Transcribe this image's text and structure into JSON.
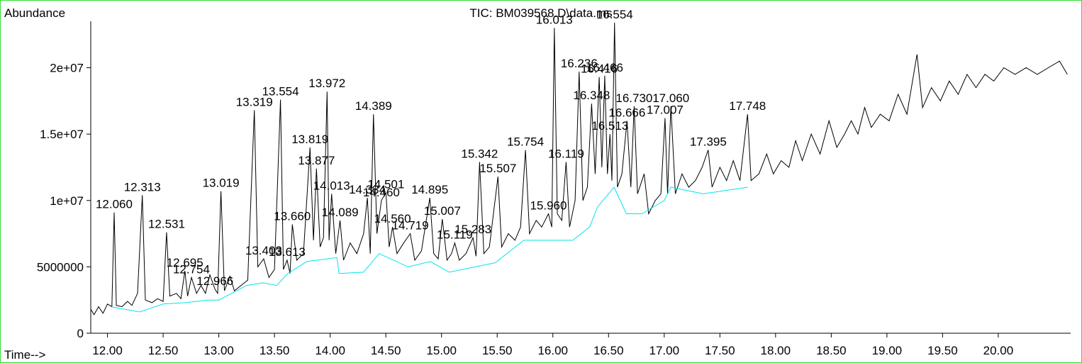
{
  "chart_data": {
    "type": "line",
    "title": "TIC: BM039568.D\\data.ms",
    "ylabel": "Abundance",
    "xlabel": "Time-->",
    "xlim": [
      11.85,
      20.65
    ],
    "ylim": [
      0,
      23500000
    ],
    "xticks": [
      {
        "value": 12,
        "label": "12.00"
      },
      {
        "value": 12.5,
        "label": "12.50"
      },
      {
        "value": 13,
        "label": "13.00"
      },
      {
        "value": 13.5,
        "label": "13.50"
      },
      {
        "value": 14,
        "label": "14.00"
      },
      {
        "value": 14.5,
        "label": "14.50"
      },
      {
        "value": 15,
        "label": "15.00"
      },
      {
        "value": 15.5,
        "label": "15.50"
      },
      {
        "value": 16,
        "label": "16.00"
      },
      {
        "value": 16.5,
        "label": "16.50"
      },
      {
        "value": 17,
        "label": "17.00"
      },
      {
        "value": 17.5,
        "label": "17.50"
      },
      {
        "value": 18,
        "label": "18.00"
      },
      {
        "value": 18.5,
        "label": "18.50"
      },
      {
        "value": 19,
        "label": "19.00"
      },
      {
        "value": 19.5,
        "label": "19.50"
      },
      {
        "value": 20,
        "label": "20.00"
      }
    ],
    "yticks": [
      0,
      5000000,
      {
        "value": 10000000,
        "label": "1e+07"
      },
      {
        "value": 15000000,
        "label": "1.5e+07"
      },
      {
        "value": 20000000,
        "label": "2e+07"
      }
    ],
    "series": [
      {
        "color": "#000000",
        "x": [
          11.85,
          11.88,
          11.92,
          11.96,
          12.0,
          12.04,
          12.06,
          12.08,
          12.13,
          12.18,
          12.22,
          12.27,
          12.313,
          12.34,
          12.4,
          12.45,
          12.5,
          12.531,
          12.56,
          12.62,
          12.66,
          12.695,
          12.72,
          12.754,
          12.8,
          12.84,
          12.88,
          12.92,
          12.966,
          12.99,
          13.019,
          13.05,
          13.1,
          13.14,
          13.2,
          13.26,
          13.319,
          13.35,
          13.403,
          13.45,
          13.5,
          13.554,
          13.58,
          13.613,
          13.64,
          13.66,
          13.7,
          13.76,
          13.819,
          13.85,
          13.877,
          13.91,
          13.94,
          13.972,
          13.99,
          14.013,
          14.05,
          14.089,
          14.12,
          14.18,
          14.24,
          14.3,
          14.334,
          14.36,
          14.389,
          14.42,
          14.46,
          14.501,
          14.53,
          14.56,
          14.6,
          14.66,
          14.719,
          14.76,
          14.82,
          14.895,
          14.93,
          14.97,
          15.007,
          15.05,
          15.09,
          15.119,
          15.16,
          15.22,
          15.283,
          15.31,
          15.342,
          15.38,
          15.43,
          15.507,
          15.54,
          15.6,
          15.66,
          15.71,
          15.754,
          15.79,
          15.85,
          15.9,
          15.96,
          15.99,
          16.013,
          16.04,
          16.08,
          16.119,
          16.15,
          16.2,
          16.236,
          16.27,
          16.31,
          16.348,
          16.38,
          16.416,
          16.44,
          16.466,
          16.49,
          16.513,
          16.53,
          16.554,
          16.58,
          16.62,
          16.666,
          16.7,
          16.73,
          16.76,
          16.82,
          16.86,
          16.92,
          16.97,
          17.007,
          17.03,
          17.06,
          17.1,
          17.16,
          17.22,
          17.28,
          17.34,
          17.395,
          17.43,
          17.5,
          17.56,
          17.62,
          17.68,
          17.748,
          17.78,
          17.85,
          17.92,
          17.98,
          18.05,
          18.12,
          18.18,
          18.24,
          18.32,
          18.4,
          18.48,
          18.55,
          18.62,
          18.68,
          18.74,
          18.8,
          18.86,
          18.94,
          19.02,
          19.1,
          19.18,
          19.27,
          19.32,
          19.4,
          19.48,
          19.56,
          19.64,
          19.72,
          19.8,
          19.88,
          19.96,
          20.05,
          20.15,
          20.25,
          20.35,
          20.45,
          20.55,
          20.62
        ],
        "values": [
          1800000,
          1400000,
          2000000,
          1500000,
          2200000,
          2000000,
          9100000,
          2100000,
          2000000,
          2400000,
          2100000,
          3000000,
          10400000,
          2500000,
          2300000,
          2600000,
          2400000,
          7600000,
          2800000,
          3000000,
          2600000,
          4700000,
          2800000,
          4200000,
          3000000,
          3600000,
          3000000,
          4400000,
          3300000,
          3000000,
          10700000,
          3200000,
          4300000,
          3200000,
          3600000,
          4000000,
          16800000,
          5000000,
          5600000,
          4200000,
          4800000,
          17600000,
          4800000,
          5500000,
          4500000,
          8200000,
          5500000,
          6000000,
          14000000,
          7000000,
          12400000,
          6500000,
          7200000,
          18200000,
          7000000,
          10500000,
          6000000,
          8500000,
          5500000,
          6800000,
          6000000,
          7500000,
          10200000,
          6000000,
          16500000,
          7500000,
          10000000,
          10600000,
          6500000,
          8000000,
          6000000,
          6800000,
          7500000,
          5500000,
          6200000,
          10200000,
          6000000,
          5600000,
          8600000,
          5500000,
          6000000,
          6800000,
          5500000,
          6000000,
          7200000,
          5800000,
          12900000,
          6000000,
          6500000,
          11800000,
          6500000,
          7500000,
          7000000,
          8000000,
          13800000,
          7500000,
          8500000,
          8000000,
          9000000,
          8000000,
          23000000,
          9000000,
          8500000,
          12900000,
          8000000,
          10000000,
          19700000,
          10000000,
          11000000,
          17300000,
          12000000,
          19300000,
          12500000,
          19400000,
          12000000,
          15000000,
          11500000,
          23400000,
          11000000,
          12000000,
          16000000,
          11000000,
          17100000,
          10500000,
          12000000,
          9000000,
          10000000,
          10500000,
          16200000,
          10500000,
          17100000,
          10500000,
          12000000,
          11000000,
          11500000,
          12500000,
          13800000,
          11000000,
          12500000,
          11500000,
          13000000,
          11500000,
          16500000,
          11500000,
          12000000,
          13500000,
          12000000,
          13000000,
          12500000,
          14500000,
          13000000,
          15000000,
          13500000,
          16000000,
          14000000,
          15000000,
          16000000,
          15000000,
          17000000,
          15500000,
          16500000,
          16000000,
          18000000,
          16500000,
          21000000,
          17000000,
          18500000,
          17500000,
          19000000,
          18000000,
          19500000,
          18500000,
          19500000,
          19000000,
          20000000,
          19500000,
          20000000,
          19500000,
          20000000,
          20500000,
          19500000
        ]
      },
      {
        "color": "#00e5ee",
        "x": [
          12.03,
          12.29,
          12.5,
          12.7,
          12.9,
          13.0,
          13.25,
          13.4,
          13.52,
          13.62,
          13.79,
          14.06,
          14.08,
          14.3,
          14.44,
          14.7,
          14.9,
          15.07,
          15.3,
          15.48,
          15.74,
          15.98,
          16.18,
          16.33,
          16.4,
          16.55,
          16.66,
          16.8,
          17.0,
          17.06,
          17.35,
          17.75
        ],
        "values": [
          2000000,
          1600000,
          2200000,
          2300000,
          2500000,
          2500000,
          3600000,
          3800000,
          3600000,
          4500000,
          5400000,
          5700000,
          4500000,
          4600000,
          6000000,
          5000000,
          5400000,
          4600000,
          5000000,
          5300000,
          7000000,
          7000000,
          7000000,
          8000000,
          9500000,
          11000000,
          9000000,
          9000000,
          10000000,
          11000000,
          10500000,
          11000000
        ]
      }
    ],
    "peaks": [
      {
        "x": 12.06,
        "label": "12.060"
      },
      {
        "x": 12.313,
        "label": "12.313"
      },
      {
        "x": 12.531,
        "label": "12.531"
      },
      {
        "x": 12.695,
        "label": "12.695"
      },
      {
        "x": 12.754,
        "label": "12.754"
      },
      {
        "x": 12.966,
        "label": "12.966"
      },
      {
        "x": 13.019,
        "label": "13.019"
      },
      {
        "x": 13.319,
        "label": "13.319"
      },
      {
        "x": 13.403,
        "label": "13.403"
      },
      {
        "x": 13.554,
        "label": "13.554"
      },
      {
        "x": 13.613,
        "label": "13.613"
      },
      {
        "x": 13.66,
        "label": "13.660"
      },
      {
        "x": 13.819,
        "label": "13.819"
      },
      {
        "x": 13.877,
        "label": "13.877"
      },
      {
        "x": 13.972,
        "label": "13.972"
      },
      {
        "x": 14.013,
        "label": "14.013"
      },
      {
        "x": 14.089,
        "label": "14.089"
      },
      {
        "x": 14.334,
        "label": "14.334"
      },
      {
        "x": 14.389,
        "label": "14.389"
      },
      {
        "x": 14.46,
        "label": "14.460"
      },
      {
        "x": 14.501,
        "label": "14.501"
      },
      {
        "x": 14.56,
        "label": "14.560"
      },
      {
        "x": 14.719,
        "label": "14.719"
      },
      {
        "x": 14.895,
        "label": "14.895"
      },
      {
        "x": 15.007,
        "label": "15.007"
      },
      {
        "x": 15.119,
        "label": "15.119"
      },
      {
        "x": 15.283,
        "label": "15.283"
      },
      {
        "x": 15.342,
        "label": "15.342"
      },
      {
        "x": 15.507,
        "label": "15.507"
      },
      {
        "x": 15.754,
        "label": "15.754"
      },
      {
        "x": 15.96,
        "label": "15.960"
      },
      {
        "x": 16.013,
        "label": "16.013"
      },
      {
        "x": 16.119,
        "label": "16.119"
      },
      {
        "x": 16.236,
        "label": "16.236"
      },
      {
        "x": 16.348,
        "label": "16.348"
      },
      {
        "x": 16.416,
        "label": "16.416"
      },
      {
        "x": 16.466,
        "label": "16.466"
      },
      {
        "x": 16.513,
        "label": "16.513"
      },
      {
        "x": 16.554,
        "label": "16.554"
      },
      {
        "x": 16.666,
        "label": "16.666"
      },
      {
        "x": 16.73,
        "label": "16.730"
      },
      {
        "x": 17.007,
        "label": "17.007"
      },
      {
        "x": 17.06,
        "label": "17.060"
      },
      {
        "x": 17.395,
        "label": "17.395"
      },
      {
        "x": 17.748,
        "label": "17.748"
      }
    ]
  }
}
